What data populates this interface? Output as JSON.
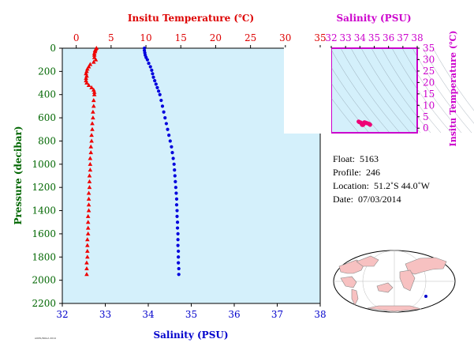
{
  "chart_data": [
    {
      "type": "scatter",
      "title": "",
      "top_axis": {
        "label": "Insitu Temperature (℃)",
        "range": [
          -2,
          35
        ],
        "ticks": [
          0,
          5,
          10,
          15,
          20,
          25,
          30,
          35
        ],
        "color": "#dd0000"
      },
      "bottom_axis": {
        "label": "Salinity (PSU)",
        "range": [
          32,
          38
        ],
        "ticks": [
          32,
          33,
          34,
          35,
          36,
          37,
          38
        ],
        "color": "#0000cc"
      },
      "left_axis": {
        "label": "Pressure (decibar)",
        "range": [
          0,
          2200
        ],
        "inverted": true,
        "ticks": [
          0,
          200,
          400,
          600,
          800,
          1000,
          1200,
          1400,
          1600,
          1800,
          2000,
          2200
        ],
        "color": "#006600"
      },
      "background": "#d4f0fb",
      "series": [
        {
          "axis": "top",
          "marker": "triangle",
          "color": "#ee0000",
          "points": [
            [
              2.9,
              0
            ],
            [
              2.8,
              10
            ],
            [
              2.7,
              20
            ],
            [
              2.7,
              30
            ],
            [
              2.6,
              45
            ],
            [
              2.6,
              60
            ],
            [
              2.6,
              80
            ],
            [
              2.8,
              100
            ],
            [
              2.5,
              120
            ],
            [
              2.0,
              140
            ],
            [
              1.8,
              160
            ],
            [
              1.6,
              180
            ],
            [
              1.5,
              200
            ],
            [
              1.4,
              220
            ],
            [
              1.5,
              240
            ],
            [
              1.4,
              260
            ],
            [
              1.4,
              280
            ],
            [
              1.5,
              300
            ],
            [
              1.8,
              320
            ],
            [
              2.2,
              340
            ],
            [
              2.5,
              360
            ],
            [
              2.6,
              380
            ],
            [
              2.6,
              400
            ],
            [
              2.5,
              450
            ],
            [
              2.5,
              500
            ],
            [
              2.4,
              550
            ],
            [
              2.4,
              600
            ],
            [
              2.3,
              650
            ],
            [
              2.3,
              700
            ],
            [
              2.2,
              750
            ],
            [
              2.2,
              800
            ],
            [
              2.1,
              850
            ],
            [
              2.1,
              900
            ],
            [
              2.0,
              950
            ],
            [
              2.0,
              1000
            ],
            [
              2.0,
              1050
            ],
            [
              1.9,
              1100
            ],
            [
              1.9,
              1150
            ],
            [
              1.9,
              1200
            ],
            [
              1.8,
              1250
            ],
            [
              1.8,
              1300
            ],
            [
              1.8,
              1350
            ],
            [
              1.8,
              1400
            ],
            [
              1.7,
              1450
            ],
            [
              1.7,
              1500
            ],
            [
              1.7,
              1550
            ],
            [
              1.7,
              1600
            ],
            [
              1.6,
              1650
            ],
            [
              1.6,
              1700
            ],
            [
              1.6,
              1750
            ],
            [
              1.6,
              1800
            ],
            [
              1.5,
              1850
            ],
            [
              1.5,
              1900
            ],
            [
              1.5,
              1950
            ]
          ]
        },
        {
          "axis": "bottom",
          "marker": "circle",
          "color": "#0000dd",
          "points": [
            [
              33.91,
              0
            ],
            [
              33.91,
              20
            ],
            [
              33.92,
              40
            ],
            [
              33.93,
              60
            ],
            [
              33.95,
              80
            ],
            [
              33.98,
              100
            ],
            [
              34.01,
              130
            ],
            [
              34.05,
              160
            ],
            [
              34.08,
              190
            ],
            [
              34.1,
              220
            ],
            [
              34.12,
              250
            ],
            [
              34.15,
              280
            ],
            [
              34.18,
              310
            ],
            [
              34.21,
              340
            ],
            [
              34.24,
              370
            ],
            [
              34.27,
              400
            ],
            [
              34.3,
              450
            ],
            [
              34.33,
              500
            ],
            [
              34.36,
              550
            ],
            [
              34.39,
              600
            ],
            [
              34.42,
              650
            ],
            [
              34.45,
              700
            ],
            [
              34.48,
              750
            ],
            [
              34.51,
              800
            ],
            [
              34.54,
              850
            ],
            [
              34.56,
              900
            ],
            [
              34.58,
              950
            ],
            [
              34.6,
              1000
            ],
            [
              34.61,
              1050
            ],
            [
              34.62,
              1100
            ],
            [
              34.63,
              1150
            ],
            [
              34.64,
              1200
            ],
            [
              34.65,
              1250
            ],
            [
              34.66,
              1300
            ],
            [
              34.66,
              1350
            ],
            [
              34.67,
              1400
            ],
            [
              34.67,
              1450
            ],
            [
              34.68,
              1500
            ],
            [
              34.68,
              1550
            ],
            [
              34.69,
              1600
            ],
            [
              34.69,
              1650
            ],
            [
              34.69,
              1700
            ],
            [
              34.7,
              1750
            ],
            [
              34.7,
              1800
            ],
            [
              34.7,
              1850
            ],
            [
              34.71,
              1900
            ],
            [
              34.71,
              1950
            ]
          ]
        }
      ]
    },
    {
      "type": "scatter",
      "title": "",
      "top_axis": {
        "label": "Salinity (PSU)",
        "range": [
          32,
          38
        ],
        "ticks": [
          32,
          33,
          34,
          35,
          36,
          37,
          38
        ],
        "color": "#cc00cc"
      },
      "right_axis": {
        "label": "Insitu Temperature (℃)",
        "range": [
          -2,
          35
        ],
        "ticks": [
          0,
          5,
          10,
          15,
          20,
          25,
          30,
          35
        ],
        "color": "#cc00cc"
      },
      "background": "#d4f0fb",
      "density_contours": true,
      "points_color": "#ee0077",
      "points": [
        [
          33.91,
          2.9
        ],
        [
          33.95,
          2.7
        ],
        [
          34.0,
          2.6
        ],
        [
          34.05,
          2.5
        ],
        [
          34.1,
          2.0
        ],
        [
          34.15,
          1.5
        ],
        [
          34.2,
          1.4
        ],
        [
          34.25,
          1.6
        ],
        [
          34.28,
          2.4
        ],
        [
          34.32,
          2.6
        ],
        [
          34.4,
          2.4
        ],
        [
          34.5,
          2.2
        ],
        [
          34.6,
          2.0
        ],
        [
          34.65,
          1.8
        ],
        [
          34.7,
          1.6
        ],
        [
          34.71,
          1.5
        ]
      ]
    }
  ],
  "float_info": {
    "float_label": "Float:",
    "float_value": "5163",
    "profile_label": "Profile:",
    "profile_value": "246",
    "location_label": "Location:",
    "location_value": "51.2˚S  44.0˚W",
    "date_label": "Date:",
    "date_value": "07/03/2014"
  },
  "footer_text": "AOML/NOAA 2014"
}
